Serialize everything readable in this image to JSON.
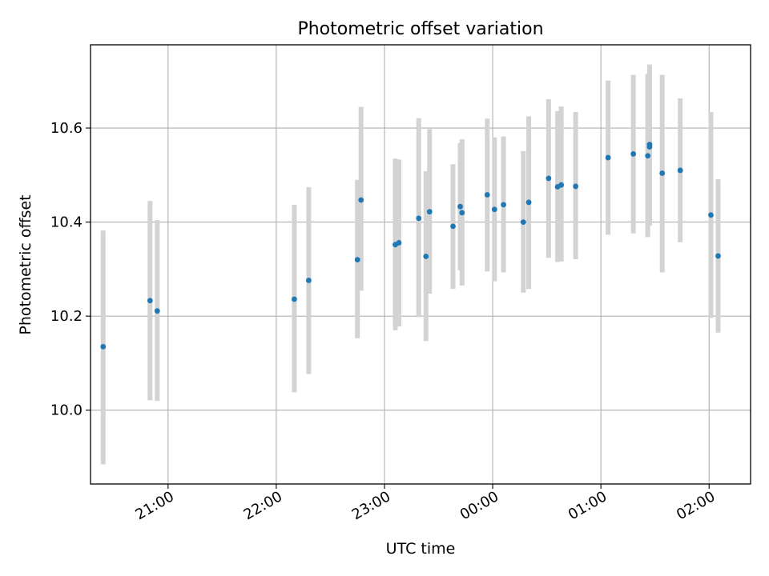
{
  "chart_data": {
    "type": "scatter",
    "title": "Photometric offset variation",
    "xlabel": "UTC time",
    "ylabel": "Photometric offset",
    "x_axis": "time",
    "xlim": [
      "20:17",
      "02:23"
    ],
    "ylim": [
      9.843,
      10.777
    ],
    "x_ticks": [
      "21:00",
      "22:00",
      "23:00",
      "00:00",
      "01:00",
      "02:00"
    ],
    "y_ticks": [
      "10.0",
      "10.2",
      "10.4",
      "10.6"
    ],
    "grid": true,
    "point_color": "#1f77b4",
    "errorbar_color": "#d3d3d3",
    "points": [
      {
        "x": "20:24",
        "y": 10.135,
        "lo": 9.885,
        "hi": 10.382
      },
      {
        "x": "20:50",
        "y": 10.233,
        "lo": 10.021,
        "hi": 10.445
      },
      {
        "x": "20:54",
        "y": 10.211,
        "lo": 10.02,
        "hi": 10.404
      },
      {
        "x": "22:10",
        "y": 10.236,
        "lo": 10.038,
        "hi": 10.437
      },
      {
        "x": "22:18",
        "y": 10.276,
        "lo": 10.077,
        "hi": 10.474
      },
      {
        "x": "22:45",
        "y": 10.32,
        "lo": 10.153,
        "hi": 10.49
      },
      {
        "x": "22:47",
        "y": 10.447,
        "lo": 10.254,
        "hi": 10.645
      },
      {
        "x": "23:06",
        "y": 10.352,
        "lo": 10.17,
        "hi": 10.535
      },
      {
        "x": "23:08",
        "y": 10.356,
        "lo": 10.178,
        "hi": 10.533
      },
      {
        "x": "23:19",
        "y": 10.408,
        "lo": 10.198,
        "hi": 10.621
      },
      {
        "x": "23:23",
        "y": 10.327,
        "lo": 10.147,
        "hi": 10.508
      },
      {
        "x": "23:25",
        "y": 10.422,
        "lo": 10.248,
        "hi": 10.598
      },
      {
        "x": "23:38",
        "y": 10.391,
        "lo": 10.258,
        "hi": 10.523
      },
      {
        "x": "23:42",
        "y": 10.433,
        "lo": 10.297,
        "hi": 10.568
      },
      {
        "x": "23:43",
        "y": 10.42,
        "lo": 10.265,
        "hi": 10.576
      },
      {
        "x": "23:57",
        "y": 10.458,
        "lo": 10.295,
        "hi": 10.62
      },
      {
        "x": "00:01",
        "y": 10.427,
        "lo": 10.274,
        "hi": 10.58
      },
      {
        "x": "00:06",
        "y": 10.437,
        "lo": 10.293,
        "hi": 10.582
      },
      {
        "x": "00:17",
        "y": 10.4,
        "lo": 10.25,
        "hi": 10.551
      },
      {
        "x": "00:20",
        "y": 10.442,
        "lo": 10.258,
        "hi": 10.625
      },
      {
        "x": "00:31",
        "y": 10.493,
        "lo": 10.324,
        "hi": 10.661
      },
      {
        "x": "00:36",
        "y": 10.475,
        "lo": 10.315,
        "hi": 10.636
      },
      {
        "x": "00:38",
        "y": 10.479,
        "lo": 10.316,
        "hi": 10.646
      },
      {
        "x": "00:46",
        "y": 10.476,
        "lo": 10.321,
        "hi": 10.634
      },
      {
        "x": "01:04",
        "y": 10.537,
        "lo": 10.373,
        "hi": 10.701
      },
      {
        "x": "01:18",
        "y": 10.545,
        "lo": 10.376,
        "hi": 10.713
      },
      {
        "x": "01:26",
        "y": 10.541,
        "lo": 10.368,
        "hi": 10.715
      },
      {
        "x": "01:27",
        "y": 10.565,
        "lo": 10.395,
        "hi": 10.735
      },
      {
        "x": "01:27",
        "y": 10.56,
        "lo": 10.392,
        "hi": 10.728
      },
      {
        "x": "01:34",
        "y": 10.504,
        "lo": 10.293,
        "hi": 10.713
      },
      {
        "x": "01:44",
        "y": 10.51,
        "lo": 10.357,
        "hi": 10.663
      },
      {
        "x": "02:01",
        "y": 10.415,
        "lo": 10.196,
        "hi": 10.634
      },
      {
        "x": "02:05",
        "y": 10.328,
        "lo": 10.165,
        "hi": 10.491
      }
    ]
  }
}
